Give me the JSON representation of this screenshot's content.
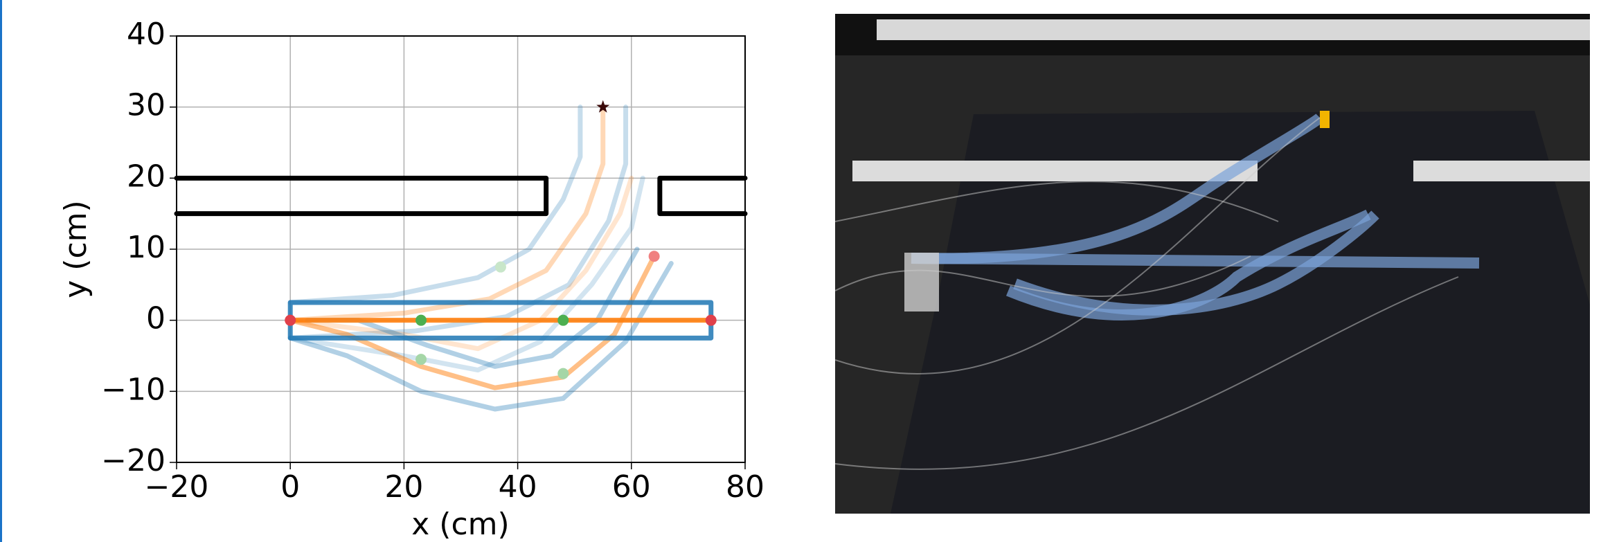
{
  "chart_data": {
    "type": "line",
    "x_label": "x (cm)",
    "y_label": "y (cm)",
    "xlim": [
      -20,
      80
    ],
    "ylim": [
      -20,
      40
    ],
    "xticks": [
      {
        "value": -20,
        "label": "−20"
      },
      0,
      20,
      40,
      60,
      80
    ],
    "yticks": [
      {
        "value": -20,
        "label": "−20"
      },
      {
        "value": -10,
        "label": "−10"
      },
      0,
      10,
      20,
      30,
      40
    ],
    "grid": true,
    "series": [
      {
        "color": "#000000",
        "alpha": 1,
        "x": [
          -20,
          45,
          45,
          -20
        ],
        "y": [
          20,
          20,
          15,
          15
        ]
      },
      {
        "color": "#000000",
        "alpha": 1,
        "x": [
          80,
          65,
          65,
          80
        ],
        "y": [
          20,
          20,
          15,
          15
        ]
      },
      {
        "color": "#1f77b4",
        "alpha": 0.25,
        "x": [
          0,
          22,
          38,
          49,
          56,
          59,
          59
        ],
        "y": [
          -2.5,
          -1.5,
          0.5,
          5,
          14,
          22,
          30
        ]
      },
      {
        "color": "#1f77b4",
        "alpha": 0.25,
        "x": [
          0,
          18,
          33,
          42,
          48,
          51,
          51
        ],
        "y": [
          2.5,
          3.5,
          6,
          10,
          17,
          23,
          30
        ]
      },
      {
        "color": "#ff7f0e",
        "alpha": 0.3,
        "x": [
          0,
          20,
          35,
          45,
          52,
          55,
          55
        ],
        "y": [
          0,
          1,
          3,
          7,
          15,
          22,
          30
        ]
      },
      {
        "color": "#1f77b4",
        "alpha": 0.2,
        "x": [
          0,
          20,
          33,
          44,
          53,
          60,
          62
        ],
        "y": [
          -2.5,
          -5,
          -7,
          -3,
          5,
          13,
          20
        ]
      },
      {
        "color": "#ff7f0e",
        "alpha": 0.2,
        "x": [
          0,
          20,
          33,
          44,
          52,
          58,
          60
        ],
        "y": [
          0,
          -2,
          -4,
          0,
          7,
          15,
          20
        ]
      },
      {
        "color": "#1f77b4",
        "alpha": 0.35,
        "x": [
          0,
          10,
          23,
          36,
          48,
          59,
          67
        ],
        "y": [
          -2.5,
          -5,
          -10,
          -12.5,
          -11,
          -3,
          8
        ]
      },
      {
        "color": "#1f77b4",
        "alpha": 0.35,
        "x": [
          3,
          12,
          24,
          36,
          46,
          54,
          61
        ],
        "y": [
          0,
          0,
          -3.5,
          -6.5,
          -5,
          0,
          10
        ]
      },
      {
        "color": "#ff7f0e",
        "alpha": 0.5,
        "x": [
          0,
          10,
          23,
          36,
          48,
          57,
          64
        ],
        "y": [
          0,
          -2,
          -6.5,
          -9.5,
          -8,
          -2,
          9
        ]
      },
      {
        "color": "#1f77b4",
        "alpha": 0.85,
        "x": [
          0,
          74,
          74,
          0,
          0
        ],
        "y": [
          2.5,
          2.5,
          -2.5,
          -2.5,
          2.5
        ]
      },
      {
        "color": "#ff7f0e",
        "alpha": 0.9,
        "x": [
          0,
          74
        ],
        "y": [
          0,
          0
        ]
      }
    ],
    "points": {
      "x": [
        0,
        74,
        64,
        23,
        48,
        23,
        48,
        37
      ],
      "y": [
        0,
        0,
        9,
        0,
        0,
        -5.5,
        -7.5,
        7.5
      ],
      "colors": [
        "#e0404a",
        "#e0404a",
        "#f08080",
        "#4caf50",
        "#4caf50",
        "#a5d6a7",
        "#a5d6a7",
        "#c8e6c9"
      ]
    },
    "target": {
      "x": 55,
      "y": 30,
      "color": "#3b0a0a"
    }
  }
}
